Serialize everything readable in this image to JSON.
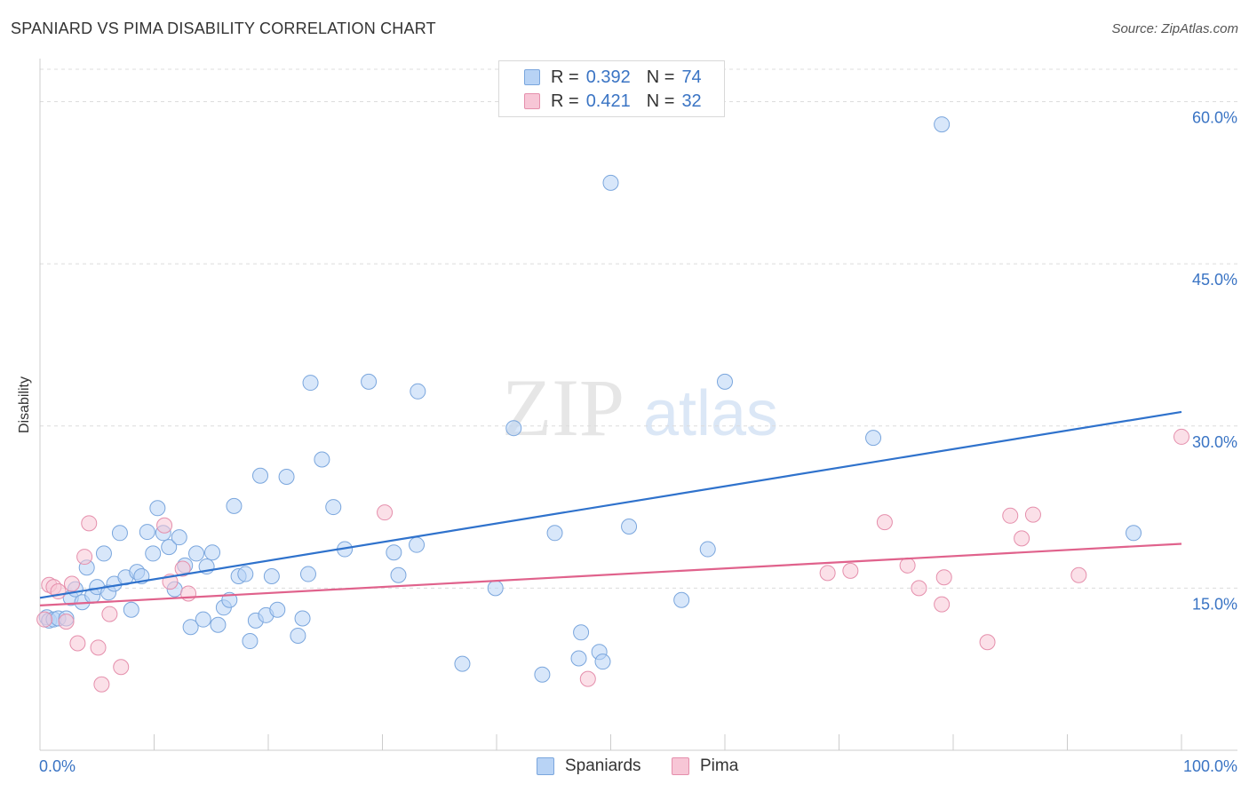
{
  "title": "SPANIARD VS PIMA DISABILITY CORRELATION CHART",
  "source": "Source: ZipAtlas.com",
  "watermark": {
    "zip": "ZIP",
    "atlas": "atlas"
  },
  "legend": {
    "r_label": "R =",
    "n_label": "N =",
    "rows": [
      {
        "r": "0.392",
        "n": "74"
      },
      {
        "r": "0.421",
        "n": "32"
      }
    ]
  },
  "bottom_legend": [
    "Spaniards",
    "Pima"
  ],
  "colors": {
    "spaniards_fill": "#b8d3f5",
    "spaniards_stroke": "#7aa6dd",
    "spaniards_line": "#2f72cc",
    "pima_fill": "#f7c6d6",
    "pima_stroke": "#e58fac",
    "pima_line": "#e0628c",
    "axis_label": "#3a74c4"
  },
  "chart_data": {
    "type": "scatter",
    "title": "SPANIARD VS PIMA DISABILITY CORRELATION CHART",
    "xlabel": "",
    "ylabel": "Disability",
    "xlim": [
      0,
      100
    ],
    "ylim": [
      0,
      63
    ],
    "x_tick_labels": [
      "0.0%",
      "100.0%"
    ],
    "y_ticks": [
      15,
      30,
      45,
      60
    ],
    "y_tick_labels": [
      "15.0%",
      "30.0%",
      "45.0%",
      "60.0%"
    ],
    "grid": true,
    "legend_position": "top-center",
    "series": [
      {
        "name": "Spaniards",
        "r": 0.392,
        "n": 74,
        "trend": {
          "x": [
            0,
            100
          ],
          "y": [
            14.1,
            31.3
          ]
        },
        "points": [
          [
            0.6,
            12.3
          ],
          [
            0.8,
            12.0
          ],
          [
            1.2,
            12.1
          ],
          [
            1.6,
            12.2
          ],
          [
            2.3,
            12.2
          ],
          [
            2.7,
            14.1
          ],
          [
            3.1,
            14.9
          ],
          [
            3.7,
            13.7
          ],
          [
            4.1,
            16.9
          ],
          [
            4.6,
            14.3
          ],
          [
            5.0,
            15.1
          ],
          [
            5.6,
            18.2
          ],
          [
            6.0,
            14.6
          ],
          [
            6.5,
            15.4
          ],
          [
            7.0,
            20.1
          ],
          [
            7.5,
            16.0
          ],
          [
            8.0,
            13.0
          ],
          [
            8.5,
            16.5
          ],
          [
            8.9,
            16.1
          ],
          [
            9.4,
            20.2
          ],
          [
            9.9,
            18.2
          ],
          [
            10.3,
            22.4
          ],
          [
            10.8,
            20.1
          ],
          [
            11.3,
            18.8
          ],
          [
            11.8,
            14.9
          ],
          [
            12.2,
            19.7
          ],
          [
            12.7,
            17.1
          ],
          [
            13.2,
            11.4
          ],
          [
            13.7,
            18.2
          ],
          [
            14.3,
            12.1
          ],
          [
            14.6,
            17.0
          ],
          [
            15.1,
            18.3
          ],
          [
            15.6,
            11.6
          ],
          [
            16.1,
            13.2
          ],
          [
            16.6,
            13.9
          ],
          [
            17.0,
            22.6
          ],
          [
            17.4,
            16.1
          ],
          [
            18.0,
            16.3
          ],
          [
            18.4,
            10.1
          ],
          [
            18.9,
            12.0
          ],
          [
            19.3,
            25.4
          ],
          [
            19.8,
            12.5
          ],
          [
            20.3,
            16.1
          ],
          [
            20.8,
            13.0
          ],
          [
            21.6,
            25.3
          ],
          [
            22.6,
            10.6
          ],
          [
            23.0,
            12.2
          ],
          [
            23.5,
            16.3
          ],
          [
            23.7,
            34.0
          ],
          [
            24.7,
            26.9
          ],
          [
            25.7,
            22.5
          ],
          [
            26.7,
            18.6
          ],
          [
            28.8,
            34.1
          ],
          [
            31.0,
            18.3
          ],
          [
            31.4,
            16.2
          ],
          [
            33.0,
            19.0
          ],
          [
            33.1,
            33.2
          ],
          [
            37.0,
            8.0
          ],
          [
            39.9,
            15.0
          ],
          [
            41.5,
            29.8
          ],
          [
            44.0,
            7.0
          ],
          [
            45.1,
            20.1
          ],
          [
            47.2,
            8.5
          ],
          [
            47.4,
            10.9
          ],
          [
            49.0,
            9.1
          ],
          [
            49.3,
            8.2
          ],
          [
            50.0,
            52.5
          ],
          [
            51.6,
            20.7
          ],
          [
            56.2,
            13.9
          ],
          [
            58.5,
            18.6
          ],
          [
            60.0,
            34.1
          ],
          [
            73.0,
            28.9
          ],
          [
            79.0,
            57.9
          ],
          [
            95.8,
            20.1
          ]
        ]
      },
      {
        "name": "Pima",
        "r": 0.421,
        "n": 32,
        "trend": {
          "x": [
            0,
            100
          ],
          "y": [
            13.4,
            19.1
          ]
        },
        "points": [
          [
            0.4,
            12.1
          ],
          [
            0.8,
            15.3
          ],
          [
            1.2,
            15.1
          ],
          [
            1.6,
            14.7
          ],
          [
            2.3,
            11.9
          ],
          [
            2.8,
            15.4
          ],
          [
            3.3,
            9.9
          ],
          [
            3.9,
            17.9
          ],
          [
            4.3,
            21.0
          ],
          [
            5.1,
            9.5
          ],
          [
            5.4,
            6.1
          ],
          [
            6.1,
            12.6
          ],
          [
            7.1,
            7.7
          ],
          [
            10.9,
            20.8
          ],
          [
            11.4,
            15.6
          ],
          [
            12.5,
            16.8
          ],
          [
            13.0,
            14.5
          ],
          [
            30.2,
            22.0
          ],
          [
            48.0,
            6.6
          ],
          [
            69.0,
            16.4
          ],
          [
            71.0,
            16.6
          ],
          [
            74.0,
            21.1
          ],
          [
            76.0,
            17.1
          ],
          [
            77.0,
            15.0
          ],
          [
            79.0,
            13.5
          ],
          [
            79.2,
            16.0
          ],
          [
            83.0,
            10.0
          ],
          [
            85.0,
            21.7
          ],
          [
            86.0,
            19.6
          ],
          [
            87.0,
            21.8
          ],
          [
            91.0,
            16.2
          ],
          [
            100.0,
            29.0
          ]
        ]
      }
    ]
  }
}
